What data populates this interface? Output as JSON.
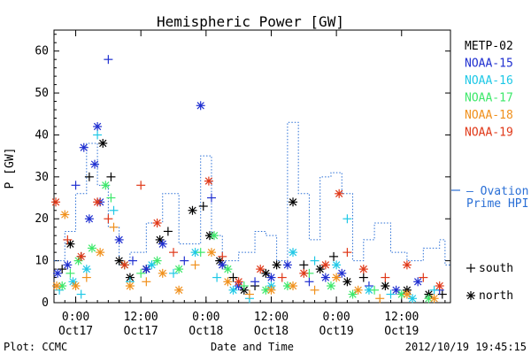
{
  "chart_data": {
    "type": "scatter",
    "title": "Hemispheric Power [GW]",
    "ylabel": "P [GW]",
    "xlabel": "Date and Time",
    "ylim": [
      0,
      65
    ],
    "yticks": [
      0,
      10,
      20,
      30,
      40,
      50,
      60
    ],
    "xlim": [
      "2012-10-16T20:00",
      "2012-10-19T21:00"
    ],
    "xticks": [
      {
        "time": "2012-10-17T00:00",
        "top": "0:00",
        "bottom": "Oct17"
      },
      {
        "time": "2012-10-17T12:00",
        "top": "12:00",
        "bottom": "Oct17"
      },
      {
        "time": "2012-10-18T00:00",
        "top": "0:00",
        "bottom": "Oct18"
      },
      {
        "time": "2012-10-18T12:00",
        "top": "12:00",
        "bottom": "Oct18"
      },
      {
        "time": "2012-10-19T00:00",
        "top": "0:00",
        "bottom": "Oct19"
      },
      {
        "time": "2012-10-19T12:00",
        "top": "12:00",
        "bottom": "Oct19"
      }
    ],
    "legend": {
      "placement": "right",
      "marker_key": [
        {
          "symbol": "+",
          "label": "south"
        },
        {
          "symbol": "*",
          "label": "north"
        }
      ]
    },
    "series": [
      {
        "name": "METP-02",
        "color": "#000000",
        "marker": "mixed",
        "points": [
          [
            "2012-10-16T21:30",
            8,
            "+"
          ],
          [
            "2012-10-16T23:00",
            14,
            "*"
          ],
          [
            "2012-10-17T01:00",
            11,
            "+"
          ],
          [
            "2012-10-17T02:30",
            30,
            "+"
          ],
          [
            "2012-10-17T05:00",
            38,
            "*"
          ],
          [
            "2012-10-17T06:30",
            30,
            "+"
          ],
          [
            "2012-10-17T08:00",
            10,
            "*"
          ],
          [
            "2012-10-17T10:00",
            6,
            "*"
          ],
          [
            "2012-10-17T13:00",
            8,
            "*"
          ],
          [
            "2012-10-17T15:30",
            15,
            "*"
          ],
          [
            "2012-10-17T17:00",
            17,
            "+"
          ],
          [
            "2012-10-17T21:30",
            22,
            "*"
          ],
          [
            "2012-10-17T23:30",
            23,
            "+"
          ],
          [
            "2012-10-18T00:40",
            16,
            "*"
          ],
          [
            "2012-10-18T02:30",
            10,
            "*"
          ],
          [
            "2012-10-18T05:00",
            6,
            "+"
          ],
          [
            "2012-10-18T07:00",
            3,
            "*"
          ],
          [
            "2012-10-18T09:00",
            4,
            "+"
          ],
          [
            "2012-10-18T11:00",
            7,
            "*"
          ],
          [
            "2012-10-18T13:00",
            9,
            "*"
          ],
          [
            "2012-10-18T16:00",
            24,
            "*"
          ],
          [
            "2012-10-18T18:00",
            9,
            "+"
          ],
          [
            "2012-10-18T21:00",
            8,
            "*"
          ],
          [
            "2012-10-18T23:30",
            11,
            "+"
          ],
          [
            "2012-10-19T02:00",
            5,
            "*"
          ],
          [
            "2012-10-19T05:00",
            6,
            "+"
          ],
          [
            "2012-10-19T09:00",
            4,
            "*"
          ],
          [
            "2012-10-19T13:00",
            3,
            "*"
          ],
          [
            "2012-10-19T17:00",
            2,
            "*"
          ],
          [
            "2012-10-19T19:30",
            2,
            "+"
          ]
        ]
      },
      {
        "name": "NOAA-15",
        "color": "#1f2fd0",
        "marker": "mixed",
        "points": [
          [
            "2012-10-16T20:40",
            7,
            "*"
          ],
          [
            "2012-10-16T22:30",
            9,
            "*"
          ],
          [
            "2012-10-17T00:00",
            28,
            "+"
          ],
          [
            "2012-10-17T01:30",
            37,
            "*"
          ],
          [
            "2012-10-17T02:30",
            20,
            "*"
          ],
          [
            "2012-10-17T03:30",
            33,
            "*"
          ],
          [
            "2012-10-17T04:00",
            42,
            "*"
          ],
          [
            "2012-10-17T04:30",
            24,
            "*"
          ],
          [
            "2012-10-17T06:00",
            58,
            "+"
          ],
          [
            "2012-10-17T08:00",
            15,
            "*"
          ],
          [
            "2012-10-17T10:30",
            10,
            "+"
          ],
          [
            "2012-10-17T13:00",
            8,
            "*"
          ],
          [
            "2012-10-17T16:00",
            14,
            "*"
          ],
          [
            "2012-10-17T20:00",
            10,
            "+"
          ],
          [
            "2012-10-17T23:00",
            47,
            "*"
          ],
          [
            "2012-10-18T01:00",
            25,
            "+"
          ],
          [
            "2012-10-18T03:00",
            9,
            "*"
          ],
          [
            "2012-10-18T06:00",
            4,
            "*"
          ],
          [
            "2012-10-18T09:00",
            5,
            "+"
          ],
          [
            "2012-10-18T12:00",
            6,
            "*"
          ],
          [
            "2012-10-18T15:00",
            9,
            "*"
          ],
          [
            "2012-10-18T19:00",
            5,
            "+"
          ],
          [
            "2012-10-18T22:00",
            6,
            "*"
          ],
          [
            "2012-10-19T01:00",
            7,
            "*"
          ],
          [
            "2012-10-19T06:00",
            4,
            "+"
          ],
          [
            "2012-10-19T11:00",
            3,
            "*"
          ],
          [
            "2012-10-19T15:00",
            5,
            "*"
          ],
          [
            "2012-10-19T19:00",
            3,
            "+"
          ]
        ]
      },
      {
        "name": "NOAA-16",
        "color": "#1ec8e6",
        "marker": "mixed",
        "points": [
          [
            "2012-10-16T21:00",
            3,
            "+"
          ],
          [
            "2012-10-16T23:30",
            5,
            "*"
          ],
          [
            "2012-10-17T01:00",
            2,
            "+"
          ],
          [
            "2012-10-17T02:00",
            8,
            "*"
          ],
          [
            "2012-10-17T04:00",
            40,
            "+"
          ],
          [
            "2012-10-17T07:00",
            22,
            "+"
          ],
          [
            "2012-10-17T10:00",
            5,
            "+"
          ],
          [
            "2012-10-17T14:00",
            9,
            "*"
          ],
          [
            "2012-10-17T18:00",
            7,
            "+"
          ],
          [
            "2012-10-17T22:00",
            12,
            "*"
          ],
          [
            "2012-10-18T02:00",
            6,
            "+"
          ],
          [
            "2012-10-18T05:00",
            3,
            "*"
          ],
          [
            "2012-10-18T08:00",
            1,
            "+"
          ],
          [
            "2012-10-18T12:00",
            4,
            "*"
          ],
          [
            "2012-10-18T16:00",
            12,
            "*"
          ],
          [
            "2012-10-18T20:00",
            10,
            "+"
          ],
          [
            "2012-10-19T00:00",
            9,
            "*"
          ],
          [
            "2012-10-19T02:00",
            20,
            "+"
          ],
          [
            "2012-10-19T06:00",
            3,
            "*"
          ],
          [
            "2012-10-19T10:00",
            2,
            "+"
          ],
          [
            "2012-10-19T14:00",
            1,
            "*"
          ],
          [
            "2012-10-19T18:00",
            3,
            "+"
          ]
        ]
      },
      {
        "name": "NOAA-17",
        "color": "#3de86a",
        "marker": "mixed",
        "points": [
          [
            "2012-10-16T21:30",
            4,
            "*"
          ],
          [
            "2012-10-16T23:00",
            7,
            "+"
          ],
          [
            "2012-10-17T00:30",
            10,
            "*"
          ],
          [
            "2012-10-17T03:00",
            13,
            "*"
          ],
          [
            "2012-10-17T05:30",
            28,
            "*"
          ],
          [
            "2012-10-17T06:30",
            25,
            "+"
          ],
          [
            "2012-10-17T09:00",
            9,
            "*"
          ],
          [
            "2012-10-17T12:00",
            7,
            "+"
          ],
          [
            "2012-10-17T15:00",
            10,
            "*"
          ],
          [
            "2012-10-17T19:00",
            8,
            "*"
          ],
          [
            "2012-10-17T23:00",
            12,
            "+"
          ],
          [
            "2012-10-18T01:30",
            16,
            "*"
          ],
          [
            "2012-10-18T04:00",
            8,
            "*"
          ],
          [
            "2012-10-18T07:00",
            4,
            "+"
          ],
          [
            "2012-10-18T11:00",
            3,
            "*"
          ],
          [
            "2012-10-18T15:00",
            4,
            "*"
          ],
          [
            "2012-10-18T19:00",
            7,
            "+"
          ],
          [
            "2012-10-18T23:00",
            4,
            "*"
          ],
          [
            "2012-10-19T03:00",
            2,
            "*"
          ],
          [
            "2012-10-19T07:00",
            3,
            "+"
          ],
          [
            "2012-10-19T12:00",
            2,
            "*"
          ],
          [
            "2012-10-19T17:00",
            1,
            "*"
          ]
        ]
      },
      {
        "name": "NOAA-18",
        "color": "#f0901c",
        "marker": "mixed",
        "points": [
          [
            "2012-10-16T20:30",
            4,
            "*"
          ],
          [
            "2012-10-16T22:00",
            21,
            "*"
          ],
          [
            "2012-10-17T00:00",
            4,
            "*"
          ],
          [
            "2012-10-17T02:00",
            6,
            "+"
          ],
          [
            "2012-10-17T04:30",
            12,
            "*"
          ],
          [
            "2012-10-17T07:00",
            18,
            "+"
          ],
          [
            "2012-10-17T10:00",
            4,
            "*"
          ],
          [
            "2012-10-17T13:00",
            5,
            "+"
          ],
          [
            "2012-10-17T16:00",
            7,
            "*"
          ],
          [
            "2012-10-17T19:00",
            3,
            "*"
          ],
          [
            "2012-10-17T22:00",
            9,
            "+"
          ],
          [
            "2012-10-18T01:00",
            12,
            "*"
          ],
          [
            "2012-10-18T04:00",
            5,
            "*"
          ],
          [
            "2012-10-18T08:00",
            2,
            "+"
          ],
          [
            "2012-10-18T12:00",
            3,
            "*"
          ],
          [
            "2012-10-18T16:00",
            4,
            "*"
          ],
          [
            "2012-10-18T20:00",
            3,
            "+"
          ],
          [
            "2012-10-19T00:00",
            6,
            "*"
          ],
          [
            "2012-10-19T04:00",
            3,
            "*"
          ],
          [
            "2012-10-19T08:00",
            1,
            "+"
          ],
          [
            "2012-10-19T13:00",
            2,
            "*"
          ],
          [
            "2012-10-19T18:00",
            1,
            "*"
          ]
        ]
      },
      {
        "name": "NOAA-19",
        "color": "#e03818",
        "marker": "mixed",
        "points": [
          [
            "2012-10-16T20:20",
            24,
            "*"
          ],
          [
            "2012-10-16T22:30",
            15,
            "+"
          ],
          [
            "2012-10-17T01:00",
            11,
            "*"
          ],
          [
            "2012-10-17T04:00",
            24,
            "*"
          ],
          [
            "2012-10-17T06:00",
            20,
            "+"
          ],
          [
            "2012-10-17T09:00",
            9,
            "*"
          ],
          [
            "2012-10-17T12:00",
            28,
            "+"
          ],
          [
            "2012-10-17T15:00",
            19,
            "*"
          ],
          [
            "2012-10-17T18:00",
            12,
            "+"
          ],
          [
            "2012-10-18T00:30",
            29,
            "*"
          ],
          [
            "2012-10-18T03:00",
            11,
            "+"
          ],
          [
            "2012-10-18T06:00",
            5,
            "*"
          ],
          [
            "2012-10-18T10:00",
            8,
            "*"
          ],
          [
            "2012-10-18T14:00",
            6,
            "+"
          ],
          [
            "2012-10-18T18:00",
            7,
            "*"
          ],
          [
            "2012-10-18T22:00",
            9,
            "*"
          ],
          [
            "2012-10-19T00:30",
            26,
            "*"
          ],
          [
            "2012-10-19T02:00",
            12,
            "+"
          ],
          [
            "2012-10-19T05:00",
            8,
            "*"
          ],
          [
            "2012-10-19T09:00",
            6,
            "+"
          ],
          [
            "2012-10-19T13:00",
            9,
            "*"
          ],
          [
            "2012-10-19T16:00",
            6,
            "+"
          ],
          [
            "2012-10-19T19:00",
            4,
            "*"
          ]
        ]
      }
    ],
    "reference_series": {
      "name": "– Ovation Prime HPI",
      "name_lines": [
        "– Ovation",
        "Prime HPI"
      ],
      "color": "#2a6fd6",
      "style": "dotted-step",
      "steps": [
        [
          "2012-10-16T20:00",
          10
        ],
        [
          "2012-10-16T22:00",
          17
        ],
        [
          "2012-10-17T00:00",
          26
        ],
        [
          "2012-10-17T02:00",
          38
        ],
        [
          "2012-10-17T04:00",
          28
        ],
        [
          "2012-10-17T06:00",
          18
        ],
        [
          "2012-10-17T08:00",
          9
        ],
        [
          "2012-10-17T10:00",
          12
        ],
        [
          "2012-10-17T13:00",
          19
        ],
        [
          "2012-10-17T16:00",
          26
        ],
        [
          "2012-10-17T19:00",
          14
        ],
        [
          "2012-10-17T23:00",
          35
        ],
        [
          "2012-10-18T01:00",
          16
        ],
        [
          "2012-10-18T03:00",
          10
        ],
        [
          "2012-10-18T06:00",
          12
        ],
        [
          "2012-10-18T09:00",
          17
        ],
        [
          "2012-10-18T11:00",
          16
        ],
        [
          "2012-10-18T13:00",
          10
        ],
        [
          "2012-10-18T15:00",
          43
        ],
        [
          "2012-10-18T17:00",
          26
        ],
        [
          "2012-10-18T19:00",
          15
        ],
        [
          "2012-10-18T21:00",
          30
        ],
        [
          "2012-10-18T23:00",
          31
        ],
        [
          "2012-10-19T01:00",
          26
        ],
        [
          "2012-10-19T03:00",
          10
        ],
        [
          "2012-10-19T05:00",
          15
        ],
        [
          "2012-10-19T07:00",
          19
        ],
        [
          "2012-10-19T10:00",
          12
        ],
        [
          "2012-10-19T13:00",
          10
        ],
        [
          "2012-10-19T16:00",
          13
        ],
        [
          "2012-10-19T19:00",
          15
        ],
        [
          "2012-10-19T20:00",
          9
        ]
      ]
    },
    "grid": false
  },
  "footer": {
    "left": "Plot: CCMC",
    "center": "Date and Time",
    "right": "2012/10/19 19:45:15"
  }
}
